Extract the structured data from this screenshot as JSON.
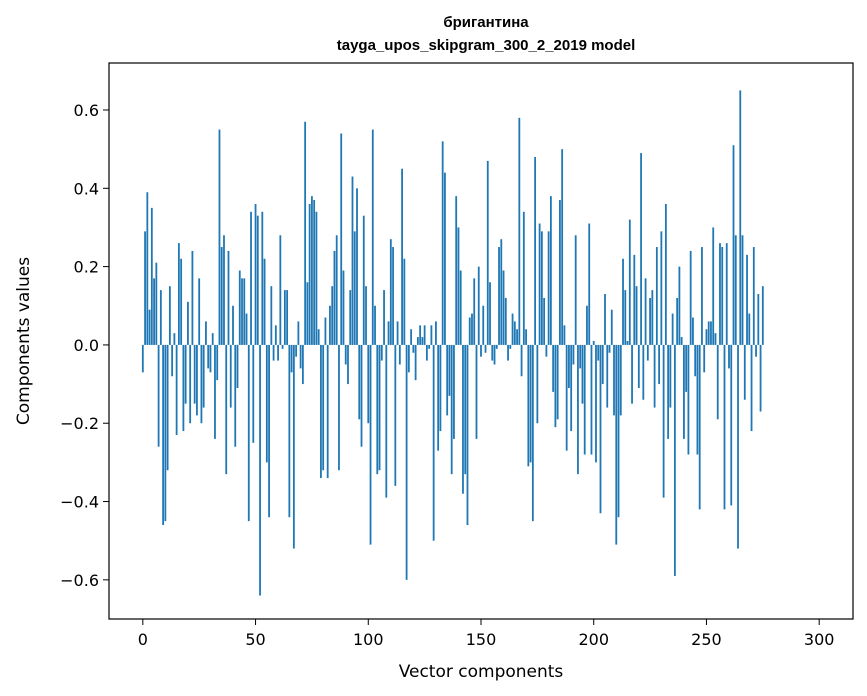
{
  "chart_data": {
    "type": "bar",
    "title": "бригантина",
    "subtitle": "tayga_upos_skipgram_300_2_2019 model",
    "xlabel": "Vector components",
    "ylabel": "Components values",
    "xlim": [
      -15,
      315
    ],
    "ylim": [
      -0.7,
      0.72
    ],
    "xticks": [
      0,
      50,
      100,
      150,
      200,
      250,
      300
    ],
    "xtick_labels": [
      "0",
      "50",
      "100",
      "150",
      "200",
      "250",
      "300"
    ],
    "yticks": [
      -0.6,
      -0.4,
      -0.2,
      0.0,
      0.2,
      0.4,
      0.6
    ],
    "ytick_labels": [
      "−0.6",
      "−0.4",
      "−0.2",
      "0.0",
      "0.2",
      "0.4",
      "0.6"
    ],
    "grid": false,
    "bar_color": "#1f77b4",
    "x_start": 0,
    "values": [
      -0.07,
      0.29,
      0.39,
      0.09,
      0.35,
      0.17,
      0.21,
      -0.26,
      0.14,
      -0.46,
      -0.45,
      -0.32,
      0.15,
      -0.08,
      0.03,
      -0.23,
      0.26,
      0.22,
      -0.22,
      -0.15,
      0.11,
      -0.2,
      0.24,
      -0.15,
      -0.18,
      0.17,
      -0.2,
      -0.16,
      0.06,
      -0.06,
      -0.07,
      0.03,
      -0.24,
      -0.09,
      0.55,
      0.25,
      0.28,
      -0.33,
      0.24,
      -0.16,
      0.1,
      -0.26,
      -0.11,
      0.19,
      0.17,
      0.17,
      0.08,
      -0.45,
      0.34,
      -0.25,
      0.36,
      0.33,
      -0.64,
      0.34,
      0.22,
      -0.3,
      -0.44,
      0.15,
      -0.04,
      0.05,
      -0.04,
      0.28,
      -0.01,
      0.14,
      0.14,
      -0.44,
      -0.07,
      -0.52,
      -0.03,
      0.06,
      -0.06,
      -0.1,
      0.57,
      0.16,
      0.36,
      0.38,
      0.37,
      0.34,
      0.04,
      -0.34,
      -0.32,
      0.07,
      -0.34,
      0.1,
      0.15,
      0.24,
      0.28,
      -0.32,
      0.54,
      0.19,
      -0.05,
      -0.1,
      0.14,
      0.43,
      0.29,
      0.4,
      -0.19,
      -0.26,
      0.33,
      0.15,
      -0.2,
      -0.51,
      0.55,
      0.1,
      -0.33,
      -0.32,
      -0.04,
      0.14,
      -0.39,
      0.06,
      0.27,
      0.25,
      -0.36,
      0.06,
      -0.05,
      0.45,
      0.22,
      -0.6,
      -0.07,
      0.04,
      -0.02,
      -0.09,
      0.02,
      0.05,
      0.02,
      0.05,
      -0.04,
      -0.01,
      0.05,
      -0.5,
      0.06,
      -0.27,
      -0.22,
      0.52,
      0.44,
      -0.18,
      -0.13,
      -0.33,
      -0.24,
      0.38,
      0.3,
      0.19,
      -0.38,
      -0.33,
      -0.46,
      0.07,
      0.08,
      0.17,
      -0.24,
      0.2,
      -0.03,
      0.1,
      -0.02,
      0.47,
      0.16,
      -0.04,
      -0.05,
      -0.01,
      0.25,
      0.27,
      0.19,
      0.12,
      -0.04,
      -0.01,
      0.08,
      0.06,
      0.04,
      0.58,
      -0.08,
      0.34,
      0.04,
      -0.31,
      -0.3,
      -0.45,
      0.48,
      -0.2,
      0.31,
      0.29,
      0.12,
      -0.03,
      0.29,
      0.38,
      -0.12,
      -0.21,
      -0.19,
      0.37,
      0.5,
      0.05,
      -0.27,
      -0.11,
      -0.22,
      -0.05,
      0.28,
      -0.33,
      -0.06,
      -0.15,
      -0.28,
      0.1,
      0.31,
      -0.28,
      0.01,
      -0.3,
      -0.04,
      -0.43,
      -0.1,
      0.13,
      -0.16,
      -0.02,
      0.09,
      -0.18,
      -0.51,
      -0.44,
      -0.18,
      0.22,
      0.14,
      0.01,
      0.32,
      -0.15,
      0.23,
      0.15,
      -0.11,
      0.49,
      -0.14,
      0.17,
      -0.04,
      0.12,
      0.14,
      -0.16,
      0.25,
      -0.1,
      0.29,
      -0.39,
      0.36,
      -0.24,
      -0.16,
      0.08,
      -0.59,
      0.12,
      0.2,
      0.02,
      -0.24,
      -0.12,
      -0.28,
      0.24,
      0.07,
      -0.08,
      -0.28,
      -0.42,
      0.25,
      -0.07,
      0.04,
      0.06,
      0.06,
      0.3,
      0.03,
      -0.19,
      0.26,
      0.25,
      -0.42,
      0.26,
      -0.06,
      -0.41,
      0.51,
      0.28,
      -0.52,
      0.65,
      0.28,
      -0.14,
      0.23,
      0.08,
      -0.22,
      0.25,
      -0.03,
      0.13,
      -0.17,
      0.15
    ]
  }
}
